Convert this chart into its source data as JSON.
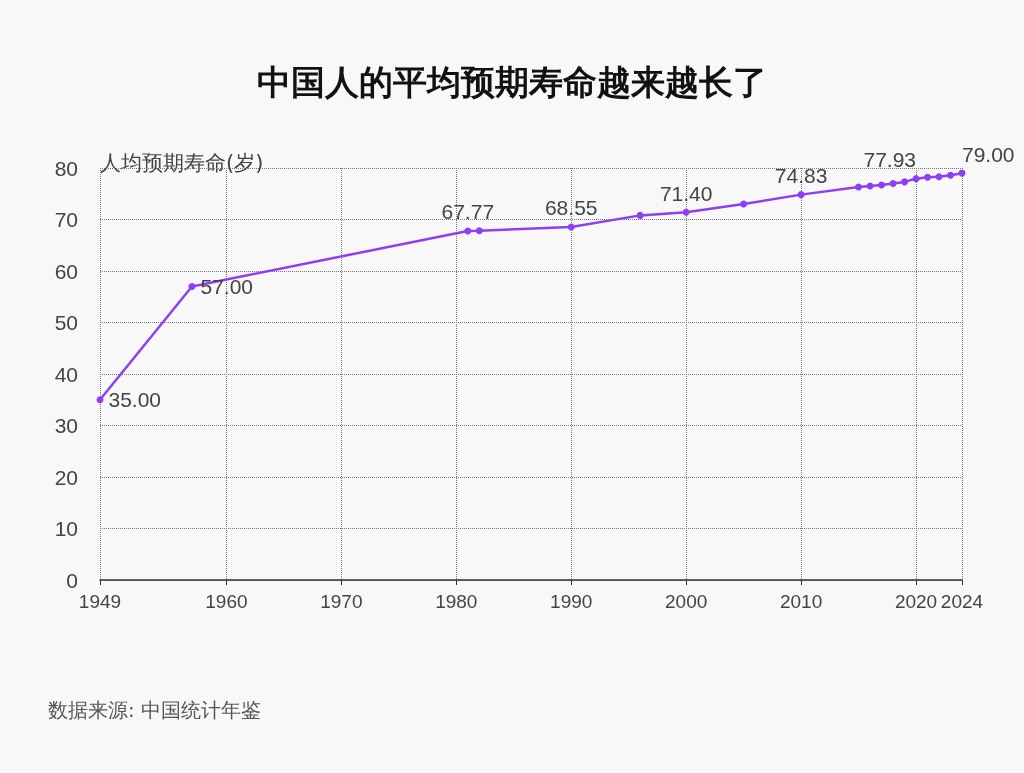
{
  "chart_data": {
    "type": "line",
    "title": "中国人的平均预期寿命越来越长了",
    "ylabel": "人均预期寿命(岁)",
    "annotations": [
      "数据来源: 中国统计年鉴"
    ],
    "x": [
      1949,
      1957,
      1981,
      1982,
      1990,
      1996,
      2000,
      2005,
      2010,
      2015,
      2016,
      2017,
      2018,
      2019,
      2020,
      2021,
      2022,
      2023,
      2024
    ],
    "series": [
      {
        "color": "#8e3ff5",
        "values": [
          35.0,
          57.0,
          67.77,
          67.8,
          68.55,
          70.8,
          71.4,
          73.0,
          74.83,
          76.3,
          76.5,
          76.7,
          77.0,
          77.3,
          77.93,
          78.2,
          78.3,
          78.6,
          79.0
        ],
        "value_labels": [
          "35.00",
          "57.00",
          "67.77",
          null,
          "68.55",
          null,
          "71.40",
          null,
          "74.83",
          null,
          null,
          null,
          null,
          null,
          "77.93",
          null,
          null,
          null,
          "79.00"
        ]
      }
    ],
    "xlim": [
      1949,
      2024
    ],
    "xticks": [
      1949,
      1960,
      1970,
      1980,
      1990,
      2000,
      2010,
      2020,
      2024
    ],
    "ylim": [
      0,
      80
    ],
    "yticks": [
      0,
      10,
      20,
      30,
      40,
      50,
      60,
      70,
      80
    ],
    "grid": true,
    "marker": "circle",
    "line_style": "solid"
  }
}
